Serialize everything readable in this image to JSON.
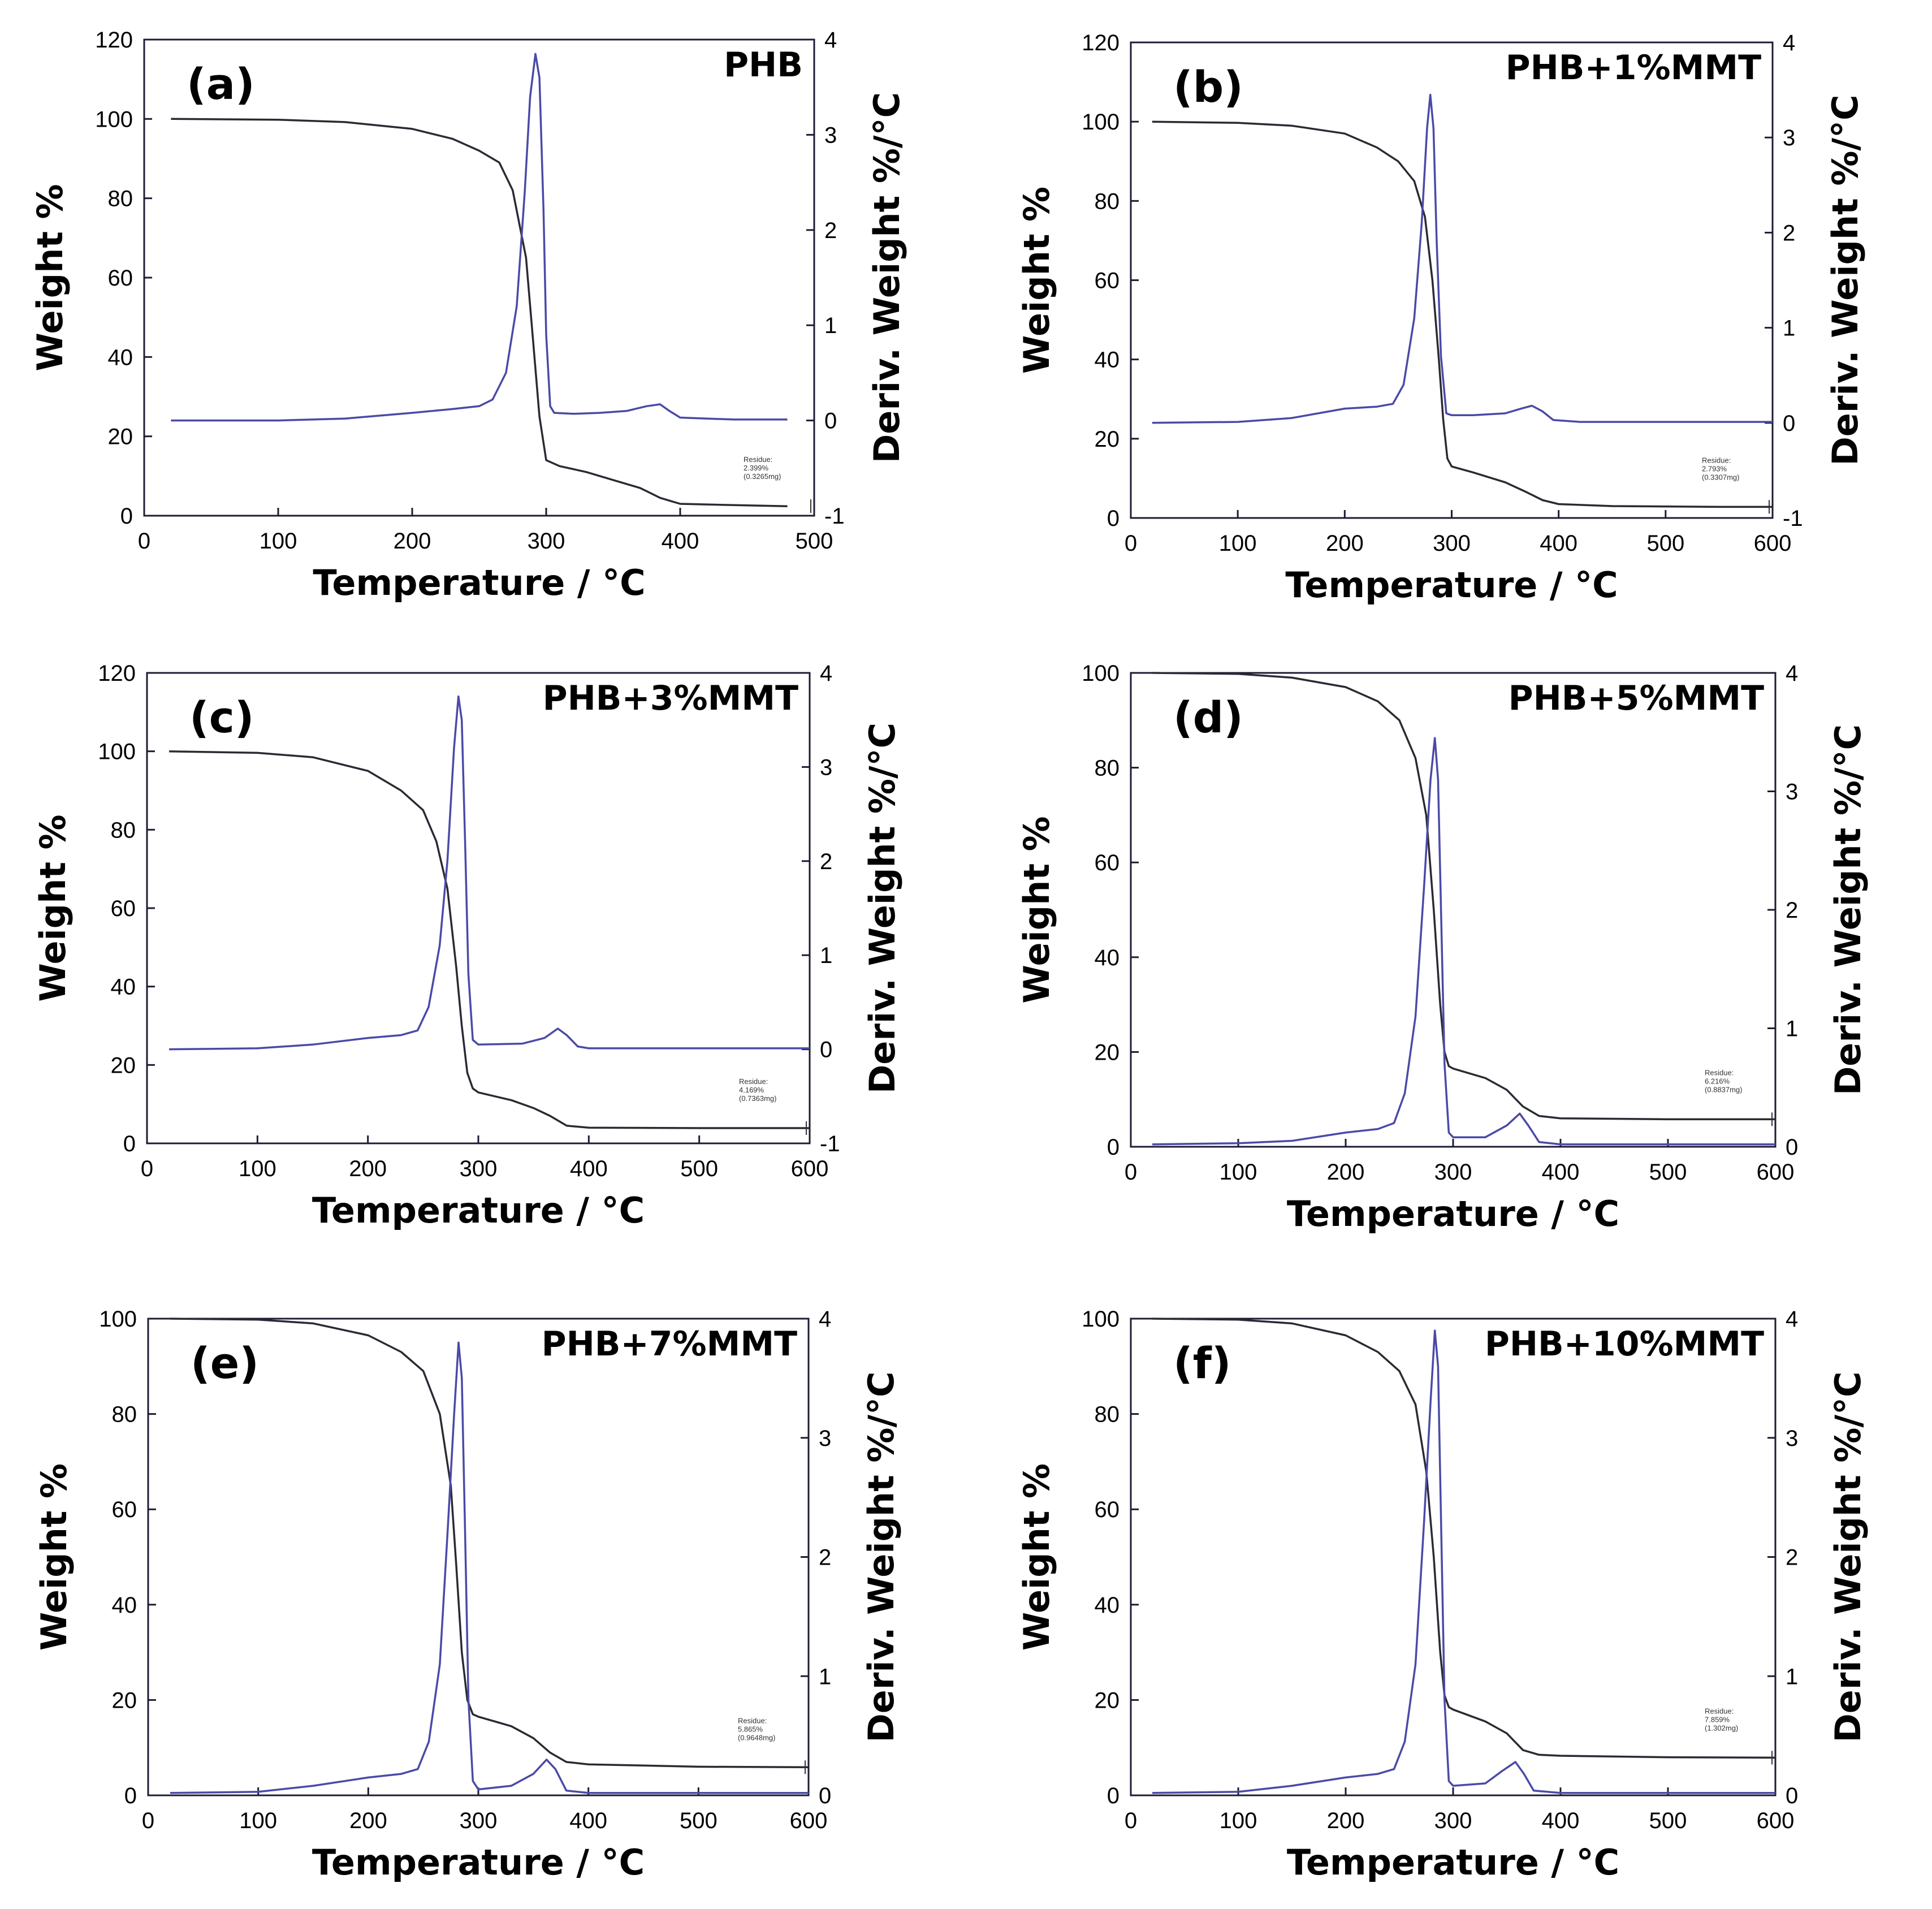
{
  "chart_data": [
    {
      "type": "line",
      "panel": "(a)",
      "sample": "PHB",
      "xlabel": "Temperature / °C",
      "ylabel": "Weight %",
      "y2label": "Deriv. Weight %/°C",
      "xlim": [
        0,
        500
      ],
      "ylim": [
        0,
        120
      ],
      "y2lim": [
        -1,
        4
      ],
      "xticks": [
        0,
        100,
        200,
        300,
        400,
        500
      ],
      "yticks": [
        0,
        20,
        40,
        60,
        80,
        100,
        120
      ],
      "y2ticks": [
        -1,
        0,
        1,
        2,
        3,
        4
      ],
      "residue": [
        "Residue:",
        "2.399%",
        "(0.3265mg)"
      ],
      "series": [
        {
          "name": "Weight %",
          "axis": "left",
          "x": [
            20,
            100,
            150,
            200,
            230,
            250,
            265,
            275,
            285,
            290,
            295,
            300,
            310,
            330,
            350,
            370,
            385,
            400,
            450,
            480
          ],
          "y": [
            100,
            99.8,
            99.2,
            97.5,
            95,
            92,
            89,
            82,
            65,
            45,
            25,
            14,
            12.5,
            11,
            9,
            7,
            4.5,
            3,
            2.6,
            2.4
          ]
        },
        {
          "name": "Deriv. Weight %/°C",
          "axis": "right",
          "x": [
            20,
            100,
            150,
            200,
            230,
            250,
            260,
            270,
            278,
            284,
            288,
            292,
            295,
            298,
            300,
            303,
            306,
            320,
            340,
            360,
            375,
            385,
            392,
            400,
            440,
            480
          ],
          "y": [
            0,
            0,
            0.02,
            0.08,
            0.12,
            0.15,
            0.22,
            0.5,
            1.2,
            2.4,
            3.4,
            3.85,
            3.6,
            2.2,
            0.9,
            0.15,
            0.08,
            0.07,
            0.08,
            0.1,
            0.15,
            0.17,
            0.1,
            0.03,
            0.01,
            0.01
          ]
        }
      ]
    },
    {
      "type": "line",
      "panel": "(b)",
      "sample": "PHB+1%MMT",
      "xlabel": "Temperature / °C",
      "ylabel": "Weight %",
      "y2label": "Deriv. Weight %/°C",
      "xlim": [
        0,
        600
      ],
      "ylim": [
        0,
        120
      ],
      "y2lim": [
        -1,
        4
      ],
      "xticks": [
        0,
        100,
        200,
        300,
        400,
        500,
        600
      ],
      "yticks": [
        0,
        20,
        40,
        60,
        80,
        100,
        120
      ],
      "y2ticks": [
        -1,
        0,
        1,
        2,
        3,
        4
      ],
      "residue": [
        "Residue:",
        "2.793%",
        "(0.3307mg)"
      ],
      "series": [
        {
          "name": "Weight %",
          "axis": "left",
          "x": [
            20,
            100,
            150,
            200,
            230,
            250,
            265,
            275,
            282,
            288,
            292,
            296,
            300,
            320,
            350,
            370,
            385,
            400,
            450,
            550,
            600
          ],
          "y": [
            100,
            99.7,
            99,
            97,
            93.5,
            90,
            85,
            76,
            60,
            40,
            25,
            15,
            13,
            11.5,
            9,
            6.5,
            4.5,
            3.5,
            3,
            2.8,
            2.8
          ]
        },
        {
          "name": "Deriv. Weight %/°C",
          "axis": "right",
          "x": [
            20,
            100,
            150,
            200,
            230,
            245,
            255,
            265,
            272,
            277,
            280,
            283,
            286,
            290,
            295,
            300,
            320,
            350,
            365,
            375,
            385,
            395,
            420,
            500,
            600
          ],
          "y": [
            0,
            0.01,
            0.05,
            0.15,
            0.17,
            0.2,
            0.4,
            1.1,
            2.1,
            3.1,
            3.45,
            3.1,
            1.9,
            0.7,
            0.1,
            0.08,
            0.08,
            0.1,
            0.15,
            0.18,
            0.12,
            0.03,
            0.01,
            0.01,
            0.01
          ]
        }
      ]
    },
    {
      "type": "line",
      "panel": "(c)",
      "sample": "PHB+3%MMT",
      "xlabel": "Temperature / °C",
      "ylabel": "Weight %",
      "y2label": "Deriv. Weight %/°C",
      "xlim": [
        0,
        600
      ],
      "ylim": [
        0,
        120
      ],
      "y2lim": [
        -1,
        4
      ],
      "xticks": [
        0,
        100,
        200,
        300,
        400,
        500,
        600
      ],
      "yticks": [
        0,
        20,
        40,
        60,
        80,
        100,
        120
      ],
      "y2ticks": [
        -1,
        0,
        1,
        2,
        3,
        4
      ],
      "residue": [
        "Residue:",
        "4.169%",
        "(0.7363mg)"
      ],
      "series": [
        {
          "name": "Weight %",
          "axis": "left",
          "x": [
            20,
            100,
            150,
            200,
            230,
            250,
            262,
            272,
            280,
            285,
            290,
            295,
            300,
            330,
            350,
            365,
            380,
            400,
            500,
            600
          ],
          "y": [
            100,
            99.6,
            98.5,
            95,
            90,
            85,
            77,
            65,
            45,
            30,
            18,
            14,
            13,
            11,
            9,
            7,
            4.5,
            4,
            3.9,
            3.9
          ]
        },
        {
          "name": "Deriv. Weight %/°C",
          "axis": "right",
          "x": [
            20,
            100,
            150,
            200,
            230,
            245,
            255,
            265,
            272,
            278,
            282,
            285,
            288,
            291,
            295,
            300,
            340,
            360,
            372,
            380,
            390,
            400,
            500,
            600
          ],
          "y": [
            0,
            0.01,
            0.05,
            0.12,
            0.15,
            0.2,
            0.45,
            1.1,
            2.0,
            3.2,
            3.75,
            3.5,
            2.2,
            0.8,
            0.1,
            0.05,
            0.06,
            0.12,
            0.22,
            0.15,
            0.03,
            0.01,
            0.01,
            0.01
          ]
        }
      ]
    },
    {
      "type": "line",
      "panel": "(d)",
      "sample": "PHB+5%MMT",
      "xlabel": "Temperature / °C",
      "ylabel": "Weight %",
      "y2label": "Deriv. Weight %/°C",
      "xlim": [
        0,
        600
      ],
      "ylim": [
        0,
        100
      ],
      "y2lim": [
        0,
        4
      ],
      "xticks": [
        0,
        100,
        200,
        300,
        400,
        500,
        600
      ],
      "yticks": [
        0,
        20,
        40,
        60,
        80,
        100
      ],
      "y2ticks": [
        0,
        1,
        2,
        3,
        4
      ],
      "residue": [
        "Residue:",
        "6.216%",
        "(0.8837mg)"
      ],
      "series": [
        {
          "name": "Weight %",
          "axis": "left",
          "x": [
            20,
            100,
            150,
            200,
            230,
            250,
            265,
            275,
            282,
            288,
            292,
            296,
            300,
            330,
            350,
            365,
            380,
            400,
            500,
            600
          ],
          "y": [
            100,
            99.8,
            99,
            97,
            94,
            90,
            82,
            70,
            50,
            30,
            20,
            17,
            16.5,
            14.5,
            12,
            8.5,
            6.5,
            6,
            5.8,
            5.8
          ]
        },
        {
          "name": "Deriv. Weight %/°C",
          "axis": "right",
          "x": [
            20,
            100,
            150,
            200,
            230,
            245,
            255,
            265,
            273,
            279,
            283,
            286,
            289,
            292,
            296,
            300,
            330,
            350,
            362,
            370,
            380,
            400,
            500,
            600
          ],
          "y": [
            0.02,
            0.03,
            0.05,
            0.12,
            0.15,
            0.2,
            0.45,
            1.1,
            2.2,
            3.1,
            3.45,
            3.1,
            1.9,
            0.7,
            0.12,
            0.08,
            0.08,
            0.18,
            0.28,
            0.18,
            0.04,
            0.02,
            0.02,
            0.02
          ]
        }
      ]
    },
    {
      "type": "line",
      "panel": "(e)",
      "sample": "PHB+7%MMT",
      "xlabel": "Temperature / °C",
      "ylabel": "Weight %",
      "y2label": "Deriv. Weight %/°C",
      "xlim": [
        0,
        600
      ],
      "ylim": [
        0,
        100
      ],
      "y2lim": [
        0,
        4
      ],
      "xticks": [
        0,
        100,
        200,
        300,
        400,
        500,
        600
      ],
      "yticks": [
        0,
        20,
        40,
        60,
        80,
        100
      ],
      "y2ticks": [
        0,
        1,
        2,
        3,
        4
      ],
      "residue": [
        "Residue:",
        "5.865%",
        "(0.9648mg)"
      ],
      "series": [
        {
          "name": "Weight %",
          "axis": "left",
          "x": [
            20,
            100,
            150,
            200,
            230,
            250,
            265,
            275,
            280,
            285,
            290,
            295,
            300,
            330,
            350,
            365,
            380,
            400,
            500,
            600
          ],
          "y": [
            100,
            99.8,
            99,
            96.5,
            93,
            89,
            80,
            65,
            48,
            30,
            20,
            17,
            16.5,
            14.5,
            12,
            9,
            7,
            6.5,
            6,
            5.9
          ]
        },
        {
          "name": "Deriv. Weight %/°C",
          "axis": "right",
          "x": [
            20,
            100,
            150,
            200,
            230,
            245,
            255,
            265,
            272,
            278,
            282,
            285,
            288,
            291,
            295,
            300,
            330,
            350,
            362,
            370,
            380,
            400,
            500,
            600
          ],
          "y": [
            0.02,
            0.03,
            0.08,
            0.15,
            0.18,
            0.22,
            0.45,
            1.1,
            2.2,
            3.2,
            3.8,
            3.5,
            2.2,
            0.8,
            0.12,
            0.05,
            0.08,
            0.18,
            0.3,
            0.22,
            0.04,
            0.02,
            0.02,
            0.02
          ]
        }
      ]
    },
    {
      "type": "line",
      "panel": "(f)",
      "sample": "PHB+10%MMT",
      "xlabel": "Temperature / °C",
      "ylabel": "Weight %",
      "y2label": "Deriv. Weight %/°C",
      "xlim": [
        0,
        600
      ],
      "ylim": [
        0,
        100
      ],
      "y2lim": [
        0,
        4
      ],
      "xticks": [
        0,
        100,
        200,
        300,
        400,
        500,
        600
      ],
      "yticks": [
        0,
        20,
        40,
        60,
        80,
        100
      ],
      "y2ticks": [
        0,
        1,
        2,
        3,
        4
      ],
      "residue": [
        "Residue:",
        "7.859%",
        "(1.302mg)"
      ],
      "series": [
        {
          "name": "Weight %",
          "axis": "left",
          "x": [
            20,
            100,
            150,
            200,
            230,
            250,
            265,
            275,
            282,
            288,
            292,
            296,
            300,
            330,
            350,
            365,
            380,
            400,
            500,
            600
          ],
          "y": [
            100,
            99.8,
            99,
            96.5,
            93,
            89,
            82,
            68,
            50,
            30,
            21,
            18.5,
            18,
            15.5,
            13,
            9.5,
            8.5,
            8.3,
            8,
            7.9
          ]
        },
        {
          "name": "Deriv. Weight %/°C",
          "axis": "right",
          "x": [
            20,
            100,
            150,
            200,
            230,
            245,
            255,
            265,
            273,
            279,
            283,
            286,
            289,
            292,
            296,
            300,
            330,
            345,
            358,
            366,
            375,
            400,
            500,
            600
          ],
          "y": [
            0.02,
            0.03,
            0.08,
            0.15,
            0.18,
            0.22,
            0.45,
            1.1,
            2.3,
            3.3,
            3.9,
            3.6,
            2.2,
            0.8,
            0.12,
            0.08,
            0.1,
            0.2,
            0.28,
            0.18,
            0.04,
            0.02,
            0.02,
            0.02
          ]
        }
      ]
    }
  ]
}
